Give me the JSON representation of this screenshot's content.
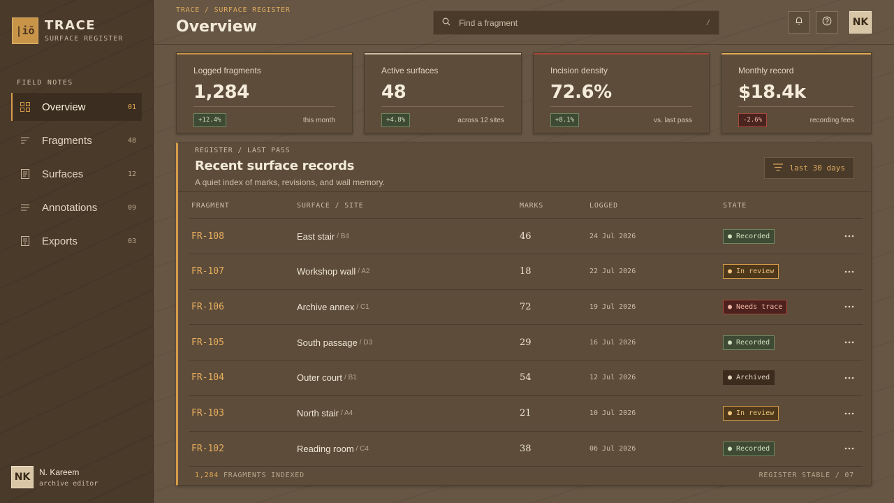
{
  "sidebar": {
    "brand": {
      "logo_glyph": "|iō",
      "title": "TRACE",
      "subtitle": "SURFACE REGISTER"
    },
    "section_label": "FIELD NOTES",
    "items": [
      {
        "label": "Overview",
        "count": "01",
        "icon": "grid-icon",
        "active": true
      },
      {
        "label": "Fragments",
        "count": "48",
        "icon": "fragments-list-icon",
        "active": false
      },
      {
        "label": "Surfaces",
        "count": "12",
        "icon": "document-icon",
        "active": false
      },
      {
        "label": "Annotations",
        "count": "09",
        "icon": "lines-icon",
        "active": false
      },
      {
        "label": "Exports",
        "count": "03",
        "icon": "export-document-icon",
        "active": false
      }
    ],
    "user": {
      "initials": "NK",
      "name": "N. Kareem",
      "role": "archive editor"
    }
  },
  "header": {
    "breadcrumb": "TRACE / SURFACE REGISTER",
    "title": "Overview",
    "search": {
      "placeholder": "Find a fragment",
      "value": "",
      "shortcut": "/"
    },
    "notifications_icon": "bell-icon",
    "help_icon": "help-icon",
    "avatar_initials": "NK"
  },
  "stats": [
    {
      "label": "Logged fragments",
      "value": "1,284",
      "delta": "+12.4%",
      "trend": "up",
      "note": "this month",
      "accent": "#c89448"
    },
    {
      "label": "Active surfaces",
      "value": "48",
      "delta": "+4.8%",
      "trend": "up",
      "note": "across 12 sites",
      "accent": "#cdbfa6"
    },
    {
      "label": "Incision density",
      "value": "72.6%",
      "delta": "+8.1%",
      "trend": "up",
      "note": "vs. last pass",
      "accent": "#a8473a"
    },
    {
      "label": "Monthly record",
      "value": "$18.4k",
      "delta": "-2.6%",
      "trend": "down",
      "note": "recording fees",
      "accent": "#e0a955"
    }
  ],
  "records": {
    "breadcrumb": "REGISTER / LAST PASS",
    "title": "Recent surface records",
    "subtitle": "A quiet index of marks, revisions, and wall memory.",
    "filter_label": "last 30 days",
    "columns": {
      "fragment": "FRAGMENT",
      "surface": "SURFACE / SITE",
      "marks": "MARKS",
      "logged": "LOGGED",
      "state": "STATE"
    },
    "rows": [
      {
        "id": "FR-108",
        "surface": "East stair",
        "site": "/ B4",
        "marks": "46",
        "logged": "24 Jul 2026",
        "state": "● Recorded",
        "state_type": "recorded"
      },
      {
        "id": "FR-107",
        "surface": "Workshop wall",
        "site": "/ A2",
        "marks": "18",
        "logged": "22 Jul 2026",
        "state": "● In review",
        "state_type": "review"
      },
      {
        "id": "FR-106",
        "surface": "Archive annex",
        "site": "/ C1",
        "marks": "72",
        "logged": "19 Jul 2026",
        "state": "● Needs trace",
        "state_type": "needs"
      },
      {
        "id": "FR-105",
        "surface": "South passage",
        "site": "/ D3",
        "marks": "29",
        "logged": "16 Jul 2026",
        "state": "● Recorded",
        "state_type": "recorded"
      },
      {
        "id": "FR-104",
        "surface": "Outer court",
        "site": "/ B1",
        "marks": "54",
        "logged": "12 Jul 2026",
        "state": "● Archived",
        "state_type": "archived"
      },
      {
        "id": "FR-103",
        "surface": "North stair",
        "site": "/ A4",
        "marks": "21",
        "logged": "10 Jul 2026",
        "state": "● In review",
        "state_type": "review"
      },
      {
        "id": "FR-102",
        "surface": "Reading room",
        "site": "/ C4",
        "marks": "38",
        "logged": "06 Jul 2026",
        "state": "● Recorded",
        "state_type": "recorded"
      }
    ],
    "footer": {
      "count": "1,284",
      "count_label": "FRAGMENTS INDEXED",
      "status": "REGISTER STABLE / 07"
    }
  },
  "colors": {
    "accent": "#d59c4a",
    "sidebar": "#4a3a2a",
    "surface": "#5d4c3a",
    "recorded": "#6f8760",
    "needs_trace": "#a94a3c"
  }
}
